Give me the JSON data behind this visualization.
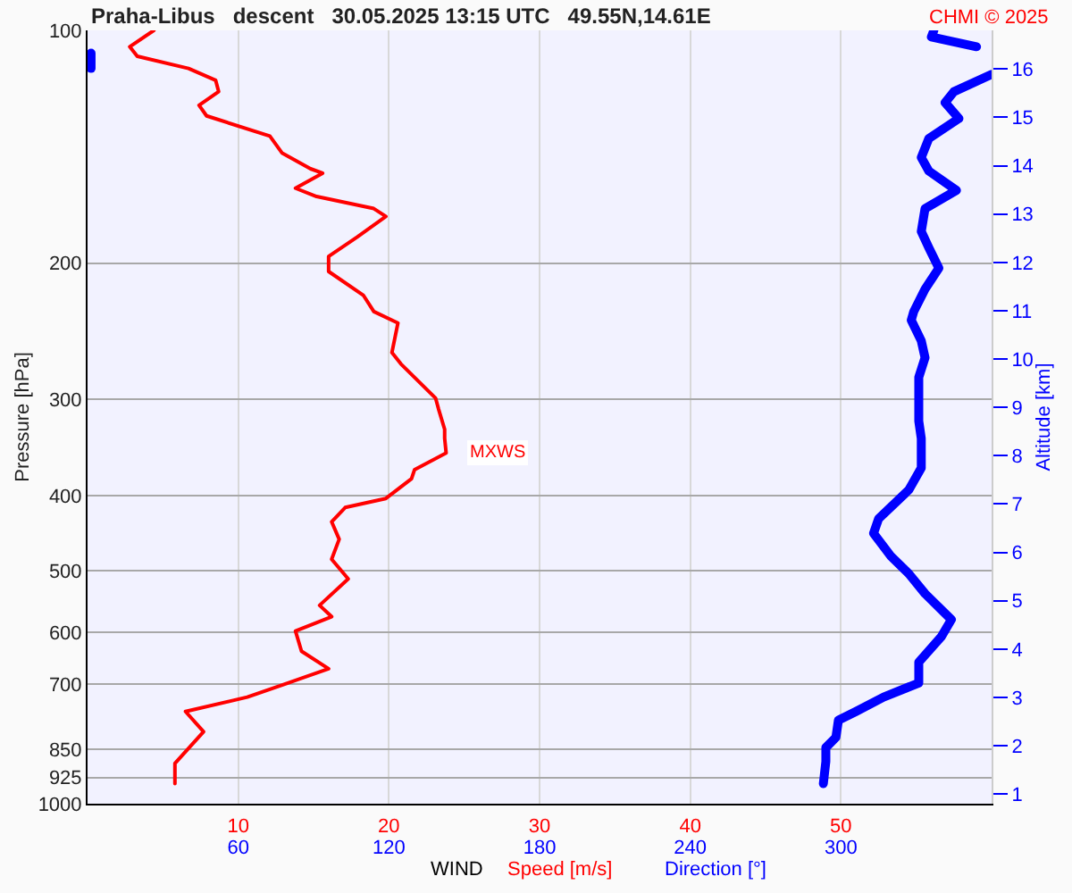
{
  "chart_data": {
    "type": "line",
    "title": "Praha-Libus   descent   30.05.2025 13:15 UTC   49.55N,14.61E",
    "xlabel": "WIND",
    "ylabel": "Pressure [hPa]",
    "y2label": "Altitude [km]",
    "annotations": [
      "CHMI © 2025",
      {
        "text": "MXWS",
        "x": 23.8,
        "y": 352
      }
    ],
    "series": [
      {
        "name": "Speed [m/s]",
        "color": "#ff0000",
        "x": [
          4.4,
          2.8,
          3.3,
          6.7,
          8.5,
          8.7,
          7.4,
          7.9,
          12.1,
          12.9,
          14.8,
          15.6,
          13.8,
          15.2,
          19.0,
          19.8,
          17.9,
          16.0,
          16.0,
          18.3,
          19.0,
          20.6,
          20.2,
          20.8,
          23.1,
          23.3,
          23.7,
          23.7,
          23.8,
          21.7,
          21.5,
          19.8,
          17.1,
          16.2,
          16.7,
          16.2,
          17.3,
          15.4,
          16.2,
          13.8,
          14.2,
          16.0,
          13.3,
          10.6,
          6.5,
          7.7,
          5.8,
          5.8
        ],
        "values": [
          100,
          105,
          108,
          112,
          116,
          120,
          125,
          129,
          137,
          144,
          151,
          153,
          160,
          164,
          170,
          174,
          185,
          196,
          205,
          220,
          231,
          239,
          261,
          270,
          299,
          309,
          328,
          337,
          352,
          370,
          380,
          403,
          414,
          432,
          455,
          483,
          512,
          554,
          573,
          598,
          635,
          669,
          698,
          728,
          760,
          807,
          887,
          942
        ]
      },
      {
        "name": "Direction [°]",
        "color": "#0000ff",
        "axis": "x2",
        "x": [
          337,
          336,
          354,
          null,
          1.4,
          1.4,
          null,
          360,
          345,
          341.5,
          347,
          335,
          332,
          335,
          346,
          333.5,
          332,
          335,
          339,
          333.5,
          329,
          328,
          332,
          333.5,
          331,
          331,
          331,
          332,
          332,
          327,
          315,
          313,
          320,
          327,
          333.5,
          344,
          340,
          331,
          331,
          317,
          306,
          299,
          298,
          294,
          294,
          293
        ],
        "values": [
          100,
          102,
          105,
          null,
          107,
          112,
          null,
          114,
          120,
          124,
          130,
          138,
          146,
          152,
          161,
          170,
          182,
          191,
          203,
          216,
          231,
          237,
          252,
          265,
          281,
          304,
          320,
          337,
          368,
          393,
          428,
          447,
          479,
          504,
          535,
          578,
          608,
          656,
          698,
          728,
          760,
          780,
          821,
          846,
          882,
          942
        ]
      }
    ],
    "xlim": [
      0,
      60
    ],
    "xticks": [
      10,
      20,
      30,
      40,
      50
    ],
    "x2lim": [
      0,
      360
    ],
    "x2ticks": [
      60,
      120,
      180,
      240,
      300
    ],
    "ylim": [
      1000,
      100
    ],
    "log": "y",
    "yticks": [
      100,
      200,
      300,
      400,
      500,
      600,
      700,
      850,
      925,
      1000
    ],
    "y2lim": [
      0.8,
      16.8
    ],
    "y2ticks": [
      1,
      2,
      3,
      4,
      5,
      6,
      7,
      8,
      9,
      10,
      11,
      12,
      13,
      14,
      15,
      16
    ],
    "grid": true,
    "legend": false,
    "marker": "none",
    "line_style": "solid"
  }
}
